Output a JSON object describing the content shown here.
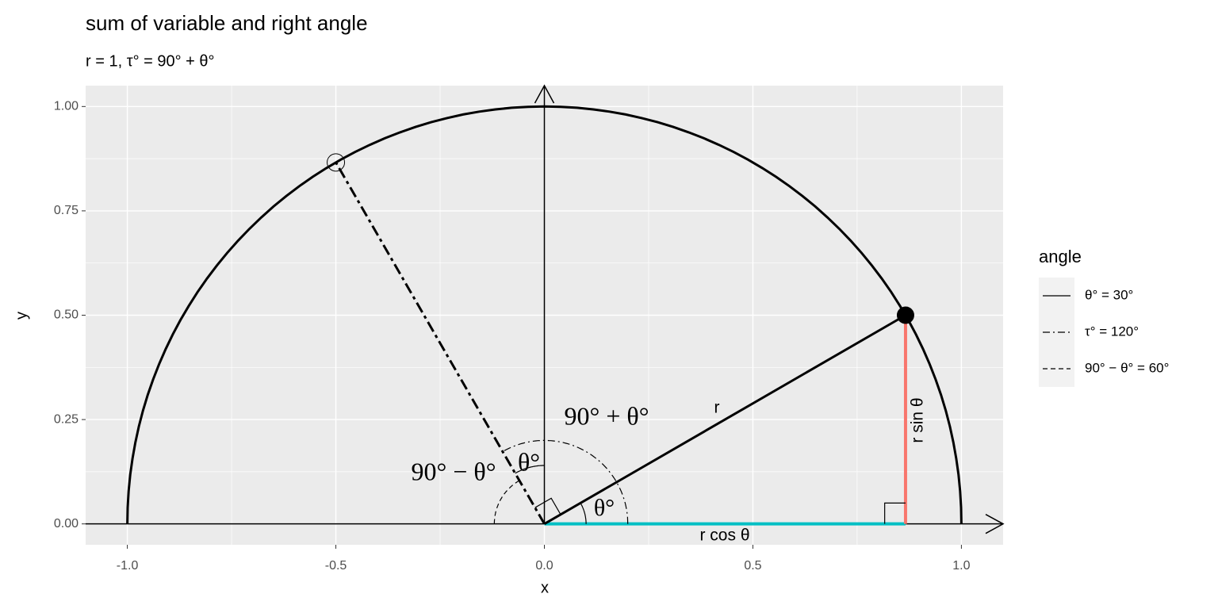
{
  "chart_data": {
    "type": "unit-circle",
    "title": "sum of variable and right angle",
    "subtitle": "r = 1, τ° = 90° + θ°",
    "xlabel": "x",
    "ylabel": "y",
    "r": 1,
    "xlim": [
      -1.1,
      1.1
    ],
    "ylim": [
      -0.05,
      1.05
    ],
    "xticks": [
      {
        "value": -1,
        "label": "-1.0"
      },
      {
        "value": -0.5,
        "label": "-0.5"
      },
      {
        "value": 0,
        "label": "0.0"
      },
      {
        "value": 0.5,
        "label": "0.5"
      },
      {
        "value": 1,
        "label": "1.0"
      }
    ],
    "yticks": [
      {
        "value": 0,
        "label": "0.00"
      },
      {
        "value": 0.25,
        "label": "0.25"
      },
      {
        "value": 0.5,
        "label": "0.50"
      },
      {
        "value": 0.75,
        "label": "0.75"
      },
      {
        "value": 1,
        "label": "1.00"
      }
    ],
    "grid": true,
    "legend": {
      "title": "angle",
      "position": "right"
    },
    "series": [
      {
        "name": "θ° = 30°",
        "value": 30,
        "linetype": "solid"
      },
      {
        "name": "τ° = 120°",
        "value": 120,
        "linetype": "dotdash"
      },
      {
        "name": "90° − θ° = 60°",
        "value": 60,
        "linetype": "dashed"
      }
    ],
    "cos_color": "#00bfc4",
    "sin_color": "#f8766d",
    "annotations": [
      "90° + θ°",
      "90° − θ°",
      "θ°",
      "θ°",
      "r",
      "r sin θ",
      "r cos θ"
    ]
  }
}
